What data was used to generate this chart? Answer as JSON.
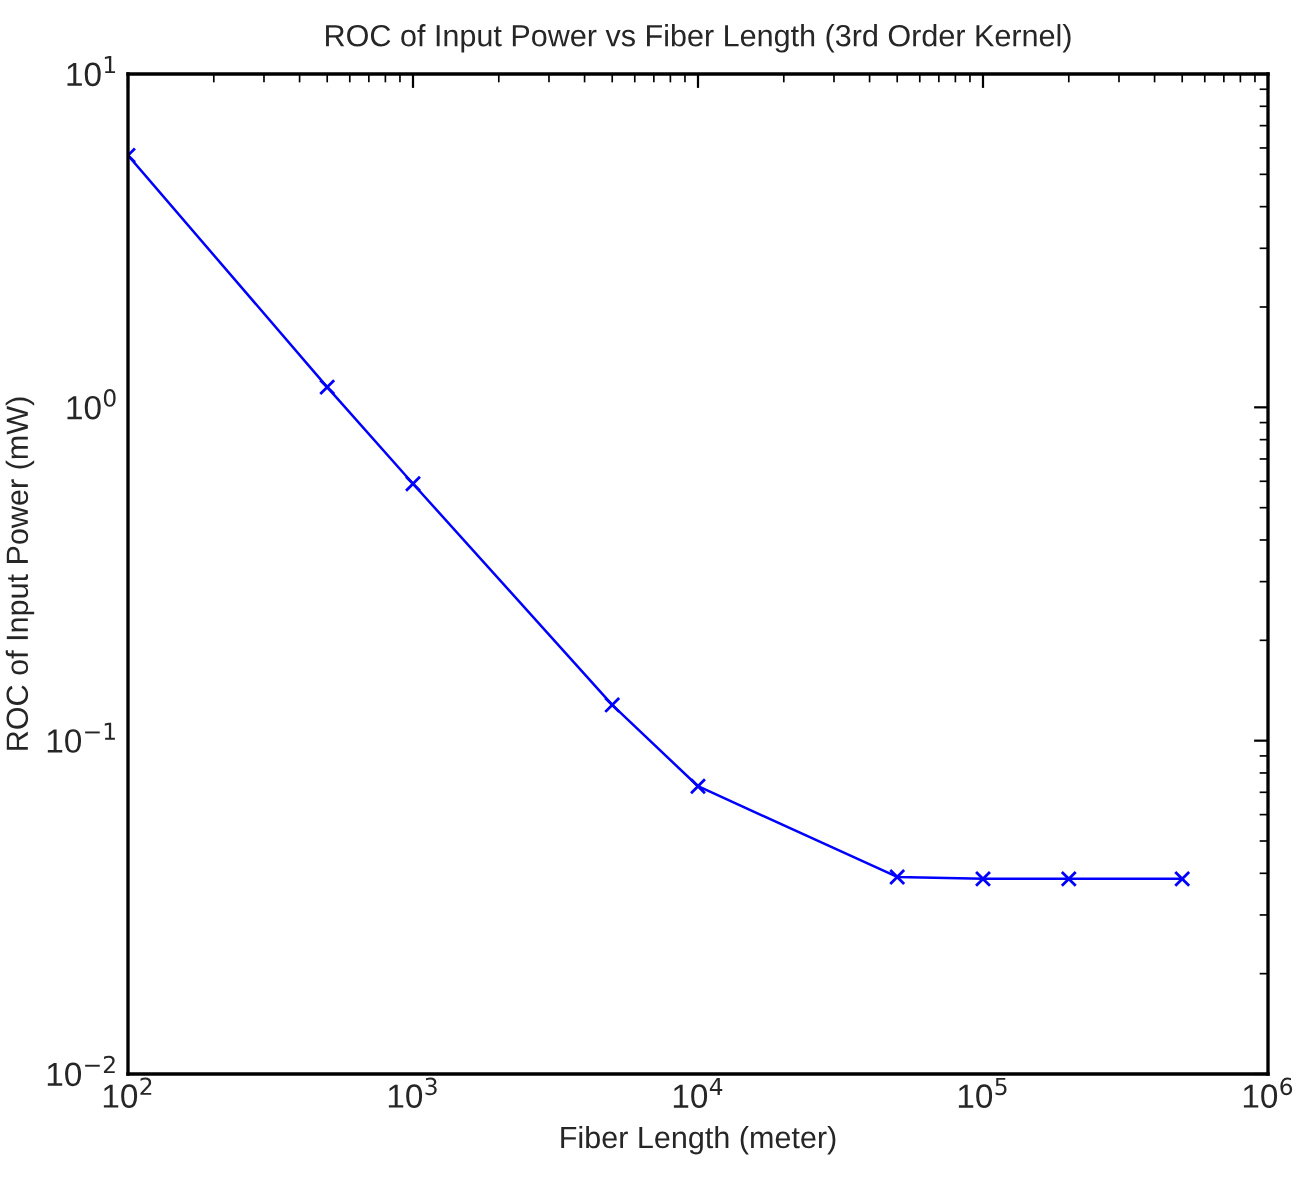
{
  "chart_data": {
    "type": "line",
    "title": "ROC of Input Power vs Fiber Length (3rd Order Kernel)",
    "xlabel": "Fiber Length (meter)",
    "ylabel": "ROC of Input Power (mW)",
    "x": [
      100,
      500,
      1000,
      5000,
      10000,
      50000,
      100000,
      200000,
      500000
    ],
    "series": [
      {
        "color": "#0000ff",
        "values": [
          5.7,
          1.15,
          0.59,
          0.128,
          0.073,
          0.039,
          0.0385,
          0.0385,
          0.0385
        ]
      }
    ],
    "log": "xy",
    "marker": "cross",
    "line_style": "solid",
    "grid": false,
    "legend": false,
    "xlim": [
      100,
      1000000
    ],
    "ylim": [
      0.01,
      10
    ],
    "xticks": [
      {
        "value": 100,
        "label": "10$^{2}$"
      },
      {
        "value": 1000,
        "label": "10$^{3}$"
      },
      {
        "value": 10000,
        "label": "10$^{4}$"
      },
      {
        "value": 100000,
        "label": "10$^{5}$"
      },
      {
        "value": 1000000,
        "label": "10$^{6}$"
      }
    ],
    "yticks": [
      {
        "value": 0.01,
        "label": "10$^{−2}$"
      },
      {
        "value": 0.1,
        "label": "10$^{−1}$"
      },
      {
        "value": 1,
        "label": "10$^{0}$"
      },
      {
        "value": 10,
        "label": "10$^{1}$"
      }
    ]
  }
}
